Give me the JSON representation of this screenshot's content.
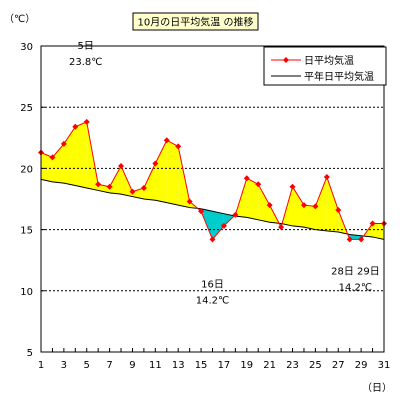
{
  "chart_data": {
    "type": "line",
    "title": "10月の日平均気温 の推移",
    "ylabel": "（℃）",
    "xlabel": "（日）",
    "ylim": [
      5,
      30
    ],
    "yticks": [
      5,
      10,
      15,
      20,
      25,
      30
    ],
    "x": [
      1,
      2,
      3,
      4,
      5,
      6,
      7,
      8,
      9,
      10,
      11,
      12,
      13,
      14,
      15,
      16,
      17,
      18,
      19,
      20,
      21,
      22,
      23,
      24,
      25,
      26,
      27,
      28,
      29,
      30,
      31
    ],
    "series": [
      {
        "name": "日平均気温",
        "color": "#ff0000",
        "values": [
          21.3,
          20.9,
          22.0,
          23.4,
          23.8,
          18.7,
          18.5,
          20.2,
          18.1,
          18.4,
          20.4,
          22.3,
          21.8,
          17.3,
          16.5,
          14.2,
          15.3,
          16.2,
          19.2,
          18.7,
          17.0,
          15.2,
          18.5,
          17.0,
          16.9,
          19.3,
          16.6,
          14.2,
          14.2,
          15.5,
          15.5
        ]
      },
      {
        "name": "平年日平均気温",
        "color": "#000000",
        "values": [
          19.1,
          18.9,
          18.8,
          18.6,
          18.4,
          18.2,
          18.0,
          17.9,
          17.7,
          17.5,
          17.4,
          17.2,
          17.0,
          16.8,
          16.7,
          16.5,
          16.3,
          16.1,
          16.0,
          15.8,
          15.6,
          15.5,
          15.3,
          15.2,
          15.0,
          14.9,
          14.8,
          14.6,
          14.5,
          14.4,
          14.2
        ]
      }
    ],
    "fill_above_color": "#ffff00",
    "fill_below_color": "#00cccc",
    "grid": "horizontal dashed",
    "legend_position": "top-right",
    "annotations": [
      {
        "day_label": "5日",
        "value_label": "23.8℃",
        "x": 5
      },
      {
        "day_label": "16日",
        "value_label": "14.2℃",
        "x": 16
      },
      {
        "day_label": "28日 29日",
        "value_label": "14.2℃",
        "x": 28.5
      }
    ]
  }
}
